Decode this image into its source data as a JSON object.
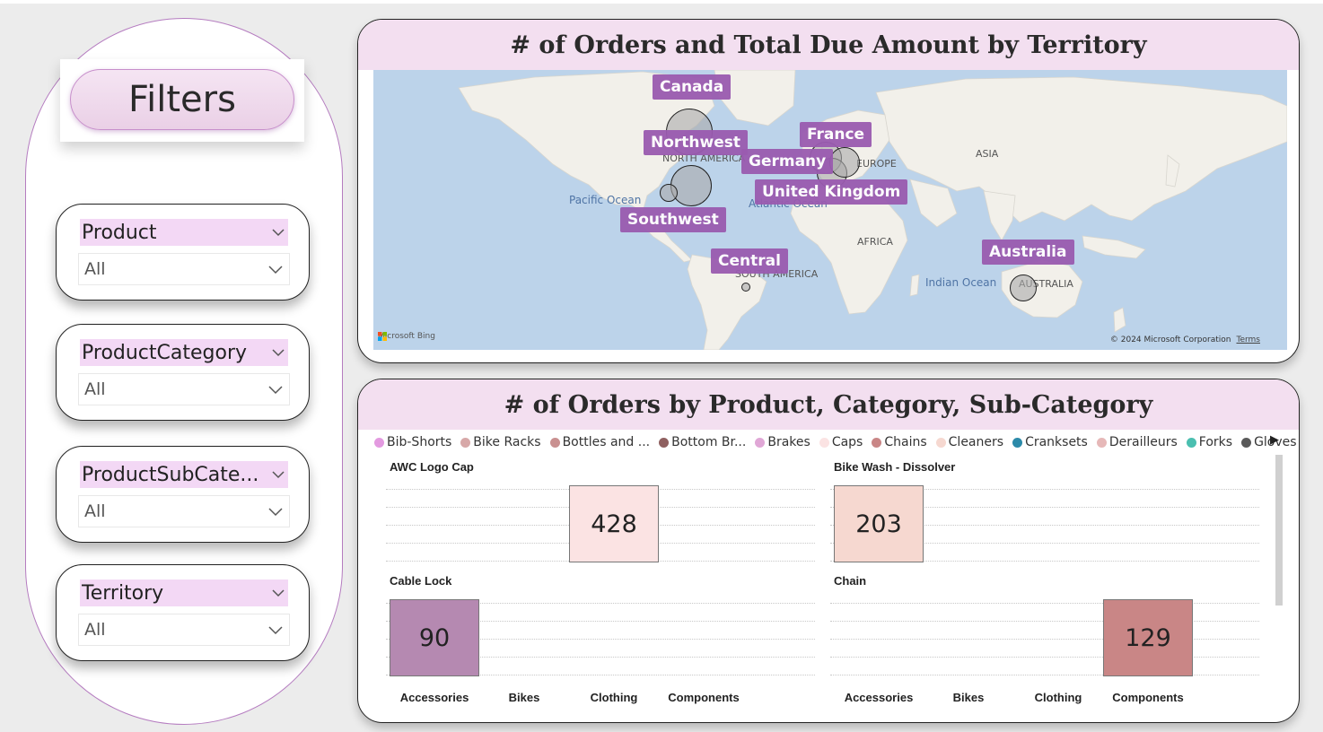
{
  "filters": {
    "title": "Filters",
    "slicers": [
      {
        "title": "Product",
        "value": "All"
      },
      {
        "title": "ProductCategory",
        "value": "All"
      },
      {
        "title": "ProductSubCate...",
        "value": "All"
      },
      {
        "title": "Territory",
        "value": "All"
      }
    ]
  },
  "map_card": {
    "title": "# of Orders and Total Due Amount by Territory",
    "territories": [
      "Canada",
      "Northwest",
      "Germany",
      "France",
      "United Kingdom",
      "Southwest",
      "Central",
      "Australia"
    ],
    "geo_labels": [
      "NORTH AMERICA",
      "EUROPE",
      "ASIA",
      "AFRICA",
      "SOUTH AMERICA",
      "AUSTRALIA"
    ],
    "ocean_labels": [
      "Pacific Ocean",
      "Atlantic Ocean",
      "Indian Ocean"
    ],
    "bing_text": "Microsoft Bing",
    "copyright": "© 2024 Microsoft Corporation",
    "terms": "Terms"
  },
  "chart_card": {
    "title": "# of Orders by Product, Category, Sub-Category",
    "legend": [
      {
        "name": "Bib-Shorts",
        "color": "#e39ae0"
      },
      {
        "name": "Bike Racks",
        "color": "#d7a8a8"
      },
      {
        "name": "Bottles and ...",
        "color": "#c99090"
      },
      {
        "name": "Bottom Br...",
        "color": "#8f6060"
      },
      {
        "name": "Brakes",
        "color": "#e0a7d6"
      },
      {
        "name": "Caps",
        "color": "#fbe3e3"
      },
      {
        "name": "Chains",
        "color": "#c98686"
      },
      {
        "name": "Cleaners",
        "color": "#f6d8d0"
      },
      {
        "name": "Cranksets",
        "color": "#2c8aa9"
      },
      {
        "name": "Derailleurs",
        "color": "#e6b8b8"
      },
      {
        "name": "Forks",
        "color": "#4bbfb0"
      },
      {
        "name": "Gloves",
        "color": "#5a5a5a"
      }
    ],
    "categories": [
      "Accessories",
      "Bikes",
      "Clothing",
      "Components"
    ]
  },
  "chart_data": {
    "type": "bar",
    "title": "# of Orders by Product, Category, Sub-Category",
    "categories": [
      "Accessories",
      "Bikes",
      "Clothing",
      "Components"
    ],
    "panels": [
      {
        "name": "AWC Logo Cap",
        "category": "Clothing",
        "value": 428,
        "color": "#fbe3e3",
        "label": "428"
      },
      {
        "name": "Bike Wash - Dissolver",
        "category": "Accessories",
        "value": 203,
        "color": "#f6d8d0",
        "label": "203"
      },
      {
        "name": "Cable Lock",
        "category": "Accessories",
        "value": 90,
        "color": "#b589b1",
        "label": "90"
      },
      {
        "name": "Chain",
        "category": "Components",
        "value": 129,
        "color": "#c98686",
        "label": "129"
      }
    ],
    "grid": true
  }
}
